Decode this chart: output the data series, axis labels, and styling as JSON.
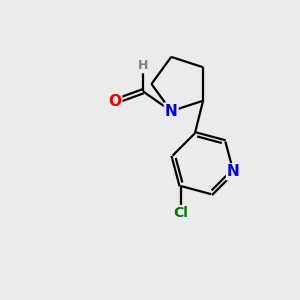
{
  "background_color": "#ebebeb",
  "bond_color": "#000000",
  "bond_width": 1.6,
  "atom_colors": {
    "N": "#0000ee",
    "O": "#ee0000",
    "Cl": "#007700",
    "C": "#000000",
    "H": "#808080"
  },
  "font_size_atoms": 11,
  "font_size_h": 9,
  "font_size_cl": 10
}
